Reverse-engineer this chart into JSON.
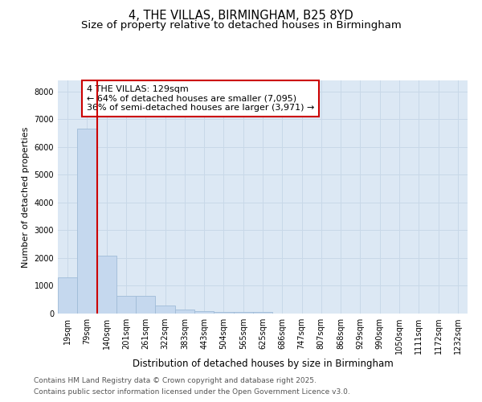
{
  "title": "4, THE VILLAS, BIRMINGHAM, B25 8YD",
  "subtitle": "Size of property relative to detached houses in Birmingham",
  "xlabel": "Distribution of detached houses by size in Birmingham",
  "ylabel": "Number of detached properties",
  "categories": [
    "19sqm",
    "79sqm",
    "140sqm",
    "201sqm",
    "261sqm",
    "322sqm",
    "383sqm",
    "443sqm",
    "504sqm",
    "565sqm",
    "625sqm",
    "686sqm",
    "747sqm",
    "807sqm",
    "868sqm",
    "929sqm",
    "990sqm",
    "1050sqm",
    "1111sqm",
    "1172sqm",
    "1232sqm"
  ],
  "values": [
    1310,
    6650,
    2080,
    640,
    640,
    300,
    150,
    90,
    50,
    50,
    60,
    0,
    0,
    0,
    0,
    0,
    0,
    0,
    0,
    0,
    0
  ],
  "bar_color": "#c5d8ee",
  "bar_edge_color": "#a0bcd8",
  "vline_x": 2,
  "vline_color": "#cc0000",
  "annotation_line1": "4 THE VILLAS: 129sqm",
  "annotation_line2": "← 64% of detached houses are smaller (7,095)",
  "annotation_line3": "36% of semi-detached houses are larger (3,971) →",
  "annotation_box_color": "#cc0000",
  "annotation_text_color": "black",
  "annotation_bg_color": "white",
  "ylim": [
    0,
    8400
  ],
  "yticks": [
    0,
    1000,
    2000,
    3000,
    4000,
    5000,
    6000,
    7000,
    8000
  ],
  "grid_color": "#c8d8e8",
  "bg_color": "#dce8f4",
  "footer1": "Contains HM Land Registry data © Crown copyright and database right 2025.",
  "footer2": "Contains public sector information licensed under the Open Government Licence v3.0.",
  "title_fontsize": 10.5,
  "subtitle_fontsize": 9.5,
  "xlabel_fontsize": 8.5,
  "ylabel_fontsize": 8,
  "tick_fontsize": 7,
  "footer_fontsize": 6.5,
  "ann_fontsize": 8
}
